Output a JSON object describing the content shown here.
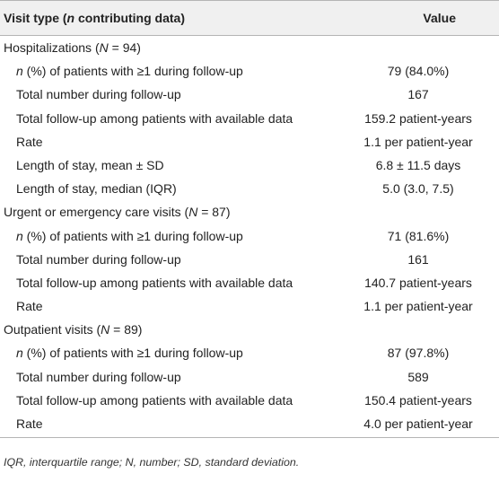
{
  "header": {
    "col1_prefix": "Visit type (",
    "col1_n": "n",
    "col1_suffix": " contributing data)",
    "col2": "Value"
  },
  "sections": [
    {
      "title_prefix": "Hospitalizations (",
      "title_n": "N",
      "title_suffix": " = 94)",
      "rows": [
        {
          "pre": "",
          "n": "n",
          "label": " (%) of patients with ≥1 during follow-up",
          "value": "79 (84.0%)"
        },
        {
          "pre": "Total number during follow-up",
          "n": "",
          "label": "",
          "value": "167"
        },
        {
          "pre": "Total follow-up among patients with available data",
          "n": "",
          "label": "",
          "value": "159.2 patient-years"
        },
        {
          "pre": "Rate",
          "n": "",
          "label": "",
          "value": "1.1 per patient-year"
        },
        {
          "pre": "Length of stay, mean ± SD",
          "n": "",
          "label": "",
          "value": "6.8 ± 11.5 days"
        },
        {
          "pre": "Length of stay, median (IQR)",
          "n": "",
          "label": "",
          "value": "5.0 (3.0, 7.5)"
        }
      ]
    },
    {
      "title_prefix": "Urgent or emergency care visits (",
      "title_n": "N",
      "title_suffix": " = 87)",
      "rows": [
        {
          "pre": "",
          "n": "n",
          "label": " (%) of patients with ≥1 during follow-up",
          "value": "71 (81.6%)"
        },
        {
          "pre": "Total number during follow-up",
          "n": "",
          "label": "",
          "value": "161"
        },
        {
          "pre": "Total follow-up among patients with available data",
          "n": "",
          "label": "",
          "value": "140.7 patient-years"
        },
        {
          "pre": "Rate",
          "n": "",
          "label": "",
          "value": "1.1 per patient-year"
        }
      ]
    },
    {
      "title_prefix": "Outpatient visits (",
      "title_n": "N",
      "title_suffix": " = 89)",
      "rows": [
        {
          "pre": "",
          "n": "n",
          "label": " (%) of patients with ≥1 during follow-up",
          "value": "87 (97.8%)"
        },
        {
          "pre": "Total number during follow-up",
          "n": "",
          "label": "",
          "value": "589"
        },
        {
          "pre": "Total follow-up among patients with available data",
          "n": "",
          "label": "",
          "value": "150.4 patient-years"
        },
        {
          "pre": "Rate",
          "n": "",
          "label": "",
          "value": "4.0 per patient-year"
        }
      ]
    }
  ],
  "footnote": "IQR, interquartile range; N, number; SD, standard deviation."
}
